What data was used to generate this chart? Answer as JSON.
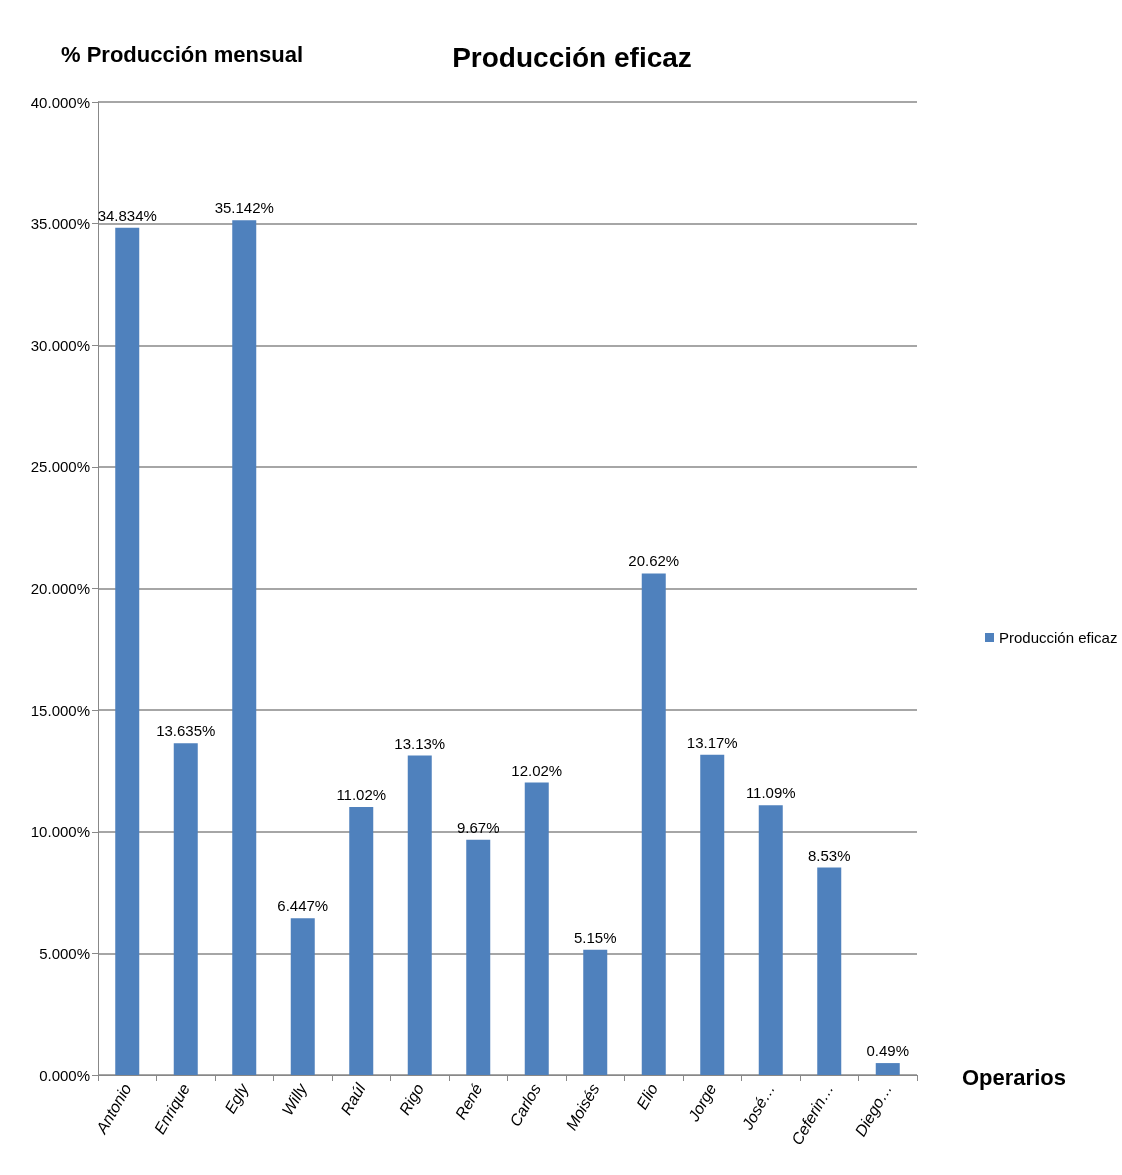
{
  "chart_data": {
    "type": "bar",
    "title": "Producción eficaz",
    "ylabel": "% Producción mensual",
    "xlabel": "Operarios",
    "categories": [
      "Antonio",
      "Enrique",
      "Egly",
      "Willy",
      "Raúl",
      "Rigo",
      "René",
      "Carlos",
      "Moisés",
      "Elio",
      "Jorge",
      "José…",
      "Ceferin…",
      "Diego…"
    ],
    "series": [
      {
        "name": "Producción eficaz",
        "color": "#4f81bd",
        "values": [
          34.834,
          13.635,
          35.142,
          6.447,
          11.02,
          13.13,
          9.67,
          12.02,
          5.15,
          20.62,
          13.17,
          11.09,
          8.53,
          0.49
        ],
        "value_labels": [
          "34.834%",
          "13.635%",
          "35.142%",
          "6.447%",
          "11.02%",
          "13.13%",
          "9.67%",
          "12.02%",
          "5.15%",
          "20.62%",
          "13.17%",
          "11.09%",
          "8.53%",
          "0.49%"
        ]
      }
    ],
    "ylim": [
      0,
      40
    ],
    "yticks": [
      {
        "value": 0,
        "label": "0.000%"
      },
      {
        "value": 5,
        "label": "5.000%"
      },
      {
        "value": 10,
        "label": "10.000%"
      },
      {
        "value": 15,
        "label": "15.000%"
      },
      {
        "value": 20,
        "label": "20.000%"
      },
      {
        "value": 25,
        "label": "25.000%"
      },
      {
        "value": 30,
        "label": "30.000%"
      },
      {
        "value": 35,
        "label": "35.000%"
      },
      {
        "value": 40,
        "label": "40.000%"
      }
    ],
    "grid": "y",
    "legend": "right"
  }
}
